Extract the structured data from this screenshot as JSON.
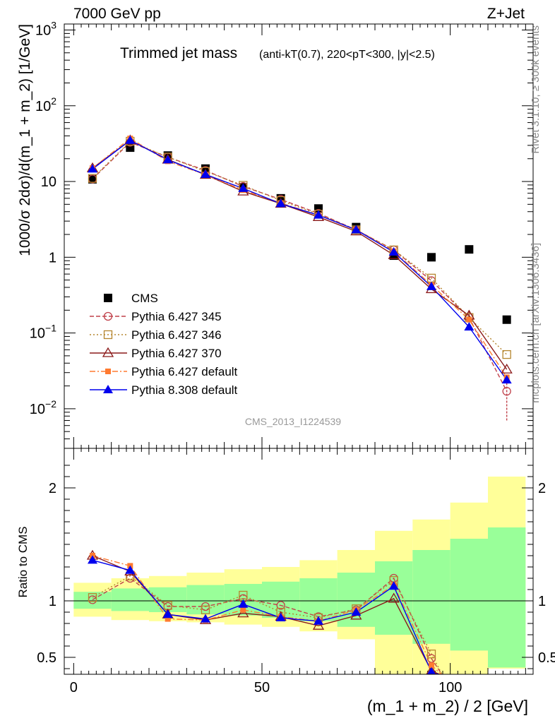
{
  "header": {
    "left": "7000 GeV pp",
    "right": "Z+Jet"
  },
  "side_labels": {
    "rivet": "Rivet 3.1.10, ≥ 300k events",
    "mcplots": "mcplots.cern.ch [arXiv:1306.3436]"
  },
  "watermark": "CMS_2013_I1224539",
  "colors": {
    "cms": "#000000",
    "p345": "#c0404a",
    "p346": "#b5862f",
    "p370": "#8b1a1a",
    "pdef": "#ff7a30",
    "p8": "#0000ee",
    "band_inner": "#99ff99",
    "band_outer": "#ffff99"
  },
  "chart_data": [
    {
      "type": "scatter",
      "title": "Trimmed jet mass",
      "title_detail": "(anti-kT(0.7), 220<pT<300, |y|<2.5)",
      "xlabel": "(m_1 + m_2) / 2 [GeV]",
      "ylabel": "1000/σ 2dσ)/d(m_1 + m_2) [1/GeV]",
      "yscale": "log",
      "xlim": [
        -2.5,
        122
      ],
      "ylim": [
        0.003,
        1200
      ],
      "y_ticks": [
        "10^-2",
        "10^-1",
        "1",
        "10",
        "10^2",
        "10^3"
      ],
      "legend_position": "bottom-left",
      "x": [
        5,
        15,
        25,
        35,
        45,
        55,
        65,
        75,
        85,
        95,
        105,
        115
      ],
      "series": [
        {
          "name": "CMS",
          "marker": "filled-square",
          "values": [
            10.7,
            28,
            22,
            14.8,
            8.4,
            6.0,
            4.4,
            2.5,
            1.05,
            1.0,
            1.27,
            0.15
          ]
        },
        {
          "name": "Pythia 6.427 345",
          "marker": "open-circle",
          "line": "dashed",
          "values": [
            10.8,
            33,
            21,
            14.0,
            8.6,
            5.8,
            3.8,
            2.3,
            1.25,
            0.49,
            0.16,
            0.017
          ]
        },
        {
          "name": "Pythia 6.427 346",
          "marker": "open-square",
          "line": "dotted",
          "values": [
            11.0,
            34,
            21,
            13.6,
            8.9,
            5.6,
            3.7,
            2.3,
            1.25,
            0.53,
            0.16,
            0.052
          ]
        },
        {
          "name": "Pythia 6.427 370",
          "marker": "open-triangle",
          "line": "solid",
          "values": [
            15.0,
            35,
            19.5,
            12.3,
            7.4,
            5.1,
            3.4,
            2.2,
            1.07,
            0.38,
            0.17,
            0.033
          ]
        },
        {
          "name": "Pythia 6.427 default",
          "marker": "filled-small-square",
          "line": "dashdot",
          "values": [
            15.0,
            37,
            18.5,
            12.3,
            7.7,
            5.2,
            3.6,
            2.3,
            1.2,
            0.43,
            0.15,
            0.026
          ]
        },
        {
          "name": "Pythia 8.308 default",
          "marker": "filled-triangle",
          "line": "solid",
          "values": [
            14.6,
            35,
            19.3,
            12.4,
            8.1,
            5.1,
            3.6,
            2.3,
            1.17,
            0.41,
            0.12,
            0.024
          ]
        }
      ]
    },
    {
      "type": "line",
      "ylabel": "Ratio to CMS",
      "xlabel": "(m_1 + m_2) / 2 [GeV]",
      "xlim": [
        -2.5,
        122
      ],
      "ylim": [
        0.35,
        2.35
      ],
      "x_ticks": [
        "0",
        "50",
        "100"
      ],
      "y_ticks": [
        "0.5",
        "1",
        "2"
      ],
      "x": [
        5,
        15,
        25,
        35,
        45,
        55,
        65,
        75,
        85,
        95,
        105,
        115
      ],
      "bands": {
        "inner": [
          [
            0.93,
            1.08
          ],
          [
            0.91,
            1.11
          ],
          [
            0.9,
            1.12
          ],
          [
            0.88,
            1.14
          ],
          [
            0.87,
            1.15
          ],
          [
            0.85,
            1.17
          ],
          [
            0.82,
            1.2
          ],
          [
            0.77,
            1.25
          ],
          [
            0.7,
            1.35
          ],
          [
            0.62,
            1.45
          ],
          [
            0.56,
            1.55
          ],
          [
            0.41,
            1.65
          ]
        ],
        "outer": [
          [
            0.86,
            1.16
          ],
          [
            0.83,
            1.2
          ],
          [
            0.82,
            1.22
          ],
          [
            0.81,
            1.25
          ],
          [
            0.79,
            1.28
          ],
          [
            0.77,
            1.3
          ],
          [
            0.73,
            1.36
          ],
          [
            0.66,
            1.45
          ],
          [
            0.35,
            1.62
          ],
          [
            0.35,
            1.72
          ],
          [
            0.35,
            1.87
          ],
          [
            0.4,
            2.1
          ]
        ]
      },
      "series": [
        {
          "name": "Pythia 6.427 345",
          "values": [
            1.01,
            1.2,
            0.95,
            0.95,
            1.02,
            0.96,
            0.86,
            0.92,
            1.2,
            0.49,
            null,
            null
          ]
        },
        {
          "name": "Pythia 6.427 346",
          "values": [
            1.03,
            1.22,
            0.96,
            0.92,
            1.05,
            0.9,
            0.85,
            0.93,
            1.18,
            0.53,
            null,
            null
          ]
        },
        {
          "name": "Pythia 6.427 370",
          "values": [
            1.4,
            1.26,
            0.88,
            0.83,
            0.89,
            0.86,
            0.78,
            0.87,
            1.02,
            0.38,
            null,
            null
          ]
        },
        {
          "name": "Pythia 6.427 default",
          "values": [
            1.4,
            1.31,
            0.84,
            0.83,
            0.92,
            0.86,
            0.82,
            0.92,
            1.14,
            0.43,
            null,
            null
          ]
        },
        {
          "name": "Pythia 8.308 default",
          "values": [
            1.36,
            1.27,
            0.88,
            0.84,
            0.97,
            0.85,
            0.82,
            0.9,
            1.13,
            0.37,
            null,
            null
          ]
        }
      ]
    }
  ]
}
